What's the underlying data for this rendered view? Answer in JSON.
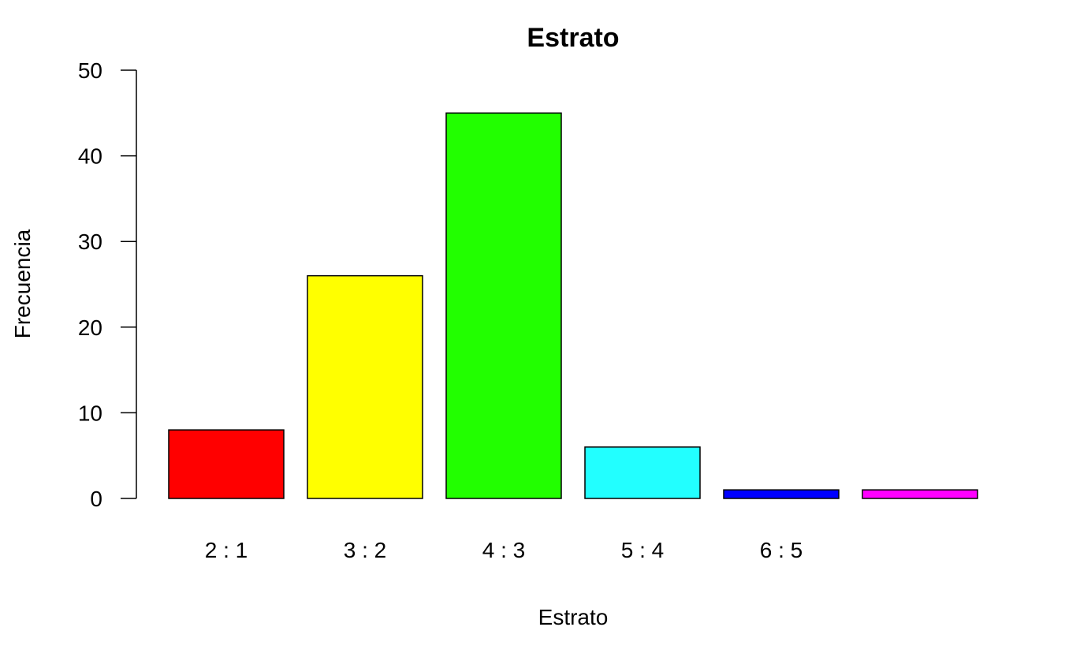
{
  "chart_data": {
    "type": "bar",
    "title": "Estrato",
    "xlabel": "Estrato",
    "ylabel": "Frecuencia",
    "ylim": [
      0,
      50
    ],
    "yticks": [
      0,
      10,
      20,
      30,
      40,
      50
    ],
    "grid": false,
    "legend": "none",
    "categories": [
      "2 : 1",
      "3 : 2",
      "4 : 3",
      "5 : 4",
      "6 : 5",
      ""
    ],
    "values": [
      8,
      26,
      45,
      6,
      1,
      1
    ],
    "colors": [
      "#ff0000",
      "#ffff00",
      "#22ff00",
      "#22ffff",
      "#0000ff",
      "#ff00ff"
    ]
  }
}
